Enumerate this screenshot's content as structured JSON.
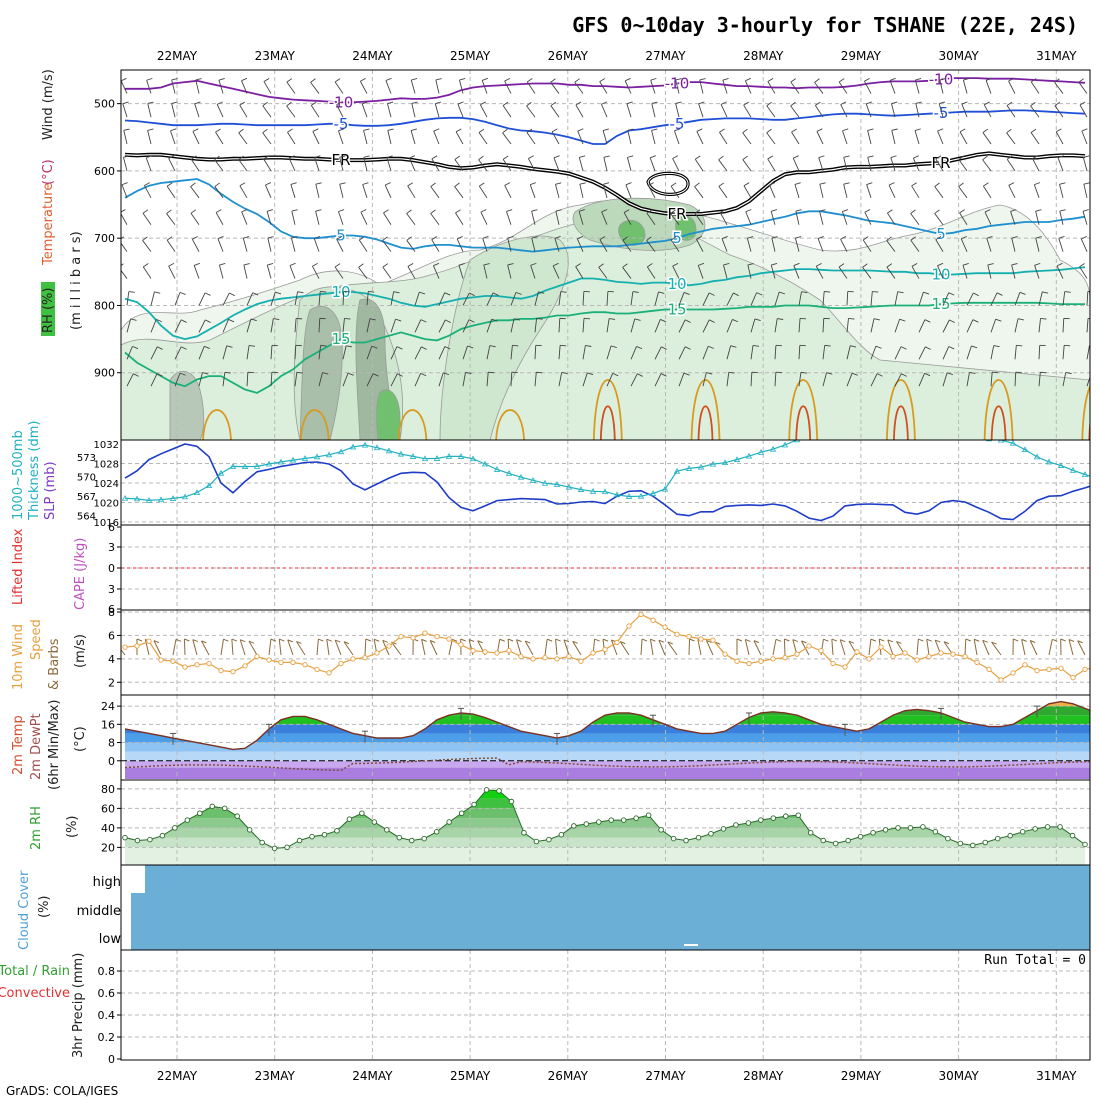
{
  "title": "GFS 0~10day 3-hourly for TSHANE (22E, 24S)",
  "footer": "GrADS: COLA/IGES",
  "dates": [
    "22MAY",
    "23MAY",
    "24MAY",
    "25MAY",
    "26MAY",
    "27MAY",
    "28MAY",
    "29MAY",
    "30MAY",
    "31MAY"
  ],
  "colors": {
    "t_minus10": "#7b1fa2",
    "t_minus5": "#1f4fd6",
    "t_freeze": "#000000",
    "t_5": "#1e90d0",
    "t_10": "#14b0b0",
    "t_15": "#1bb07a",
    "t_20": "#d89a20",
    "t_25": "#d05020",
    "rh_contour": "#aaaaaa",
    "slp": "#1e3cc8",
    "thickness": "#20b0c0",
    "wind10": "#e8a040",
    "barb": "#444444",
    "barb10": "#8a6a3a",
    "cloud": "#6baed6",
    "rh_fill": "#9dd39d",
    "lifted": "#e03030"
  },
  "chart_data": [
    {
      "panel": "upper-air",
      "type": "contour",
      "ylabels": [
        "Temperature",
        "(°C)",
        "Wind (m/s)",
        "RH (%)"
      ],
      "ylabel_axis": "(m i l l i b a r s)",
      "y_ticks": [
        500,
        600,
        700,
        800,
        900
      ],
      "ylim": [
        1000,
        450
      ],
      "temp_contours": [
        {
          "label": "-10",
          "color_key": "t_minus10",
          "p": [
            478,
            478,
            478,
            476,
            470,
            468,
            466,
            470,
            474,
            478,
            482,
            486,
            490,
            492,
            494,
            495,
            496,
            497,
            498,
            498,
            497,
            496,
            494,
            492,
            493,
            493,
            491,
            487,
            480,
            476,
            474,
            473,
            472,
            471,
            470,
            470,
            470,
            472,
            472,
            474,
            474,
            475,
            476,
            475,
            474,
            473,
            470,
            468,
            468,
            470,
            472,
            474,
            474,
            475,
            476,
            476,
            477,
            476,
            476,
            476,
            475,
            473,
            470,
            468,
            467,
            467,
            467,
            466,
            464,
            462,
            462,
            462,
            463,
            463,
            463,
            464,
            465,
            466,
            467,
            468,
            469
          ]
        },
        {
          "label": "-5",
          "color_key": "t_minus5",
          "p": [
            525,
            526,
            528,
            530,
            532,
            532,
            532,
            531,
            530,
            530,
            531,
            532,
            532,
            532,
            532,
            532,
            531,
            530,
            530,
            532,
            533,
            533,
            532,
            530,
            527,
            524,
            522,
            521,
            521,
            523,
            527,
            532,
            537,
            540,
            541,
            543,
            546,
            550,
            555,
            560,
            560,
            548,
            540,
            538,
            535,
            532,
            530,
            527,
            524,
            523,
            522,
            522,
            522,
            523,
            524,
            524,
            522,
            520,
            518,
            516,
            515,
            515,
            516,
            517,
            518,
            517,
            516,
            515,
            514,
            513,
            512,
            512,
            512,
            511,
            510,
            510,
            511,
            512,
            513,
            514,
            515
          ]
        },
        {
          "label": "FR",
          "color_key": "t_freeze",
          "p": [
            576,
            577,
            576,
            576,
            578,
            580,
            582,
            583,
            583,
            582,
            582,
            581,
            580,
            580,
            581,
            582,
            582,
            583,
            584,
            584,
            584,
            583,
            582,
            582,
            584,
            587,
            590,
            594,
            596,
            595,
            592,
            590,
            592,
            594,
            597,
            599,
            601,
            604,
            610,
            616,
            625,
            636,
            648,
            656,
            660,
            663,
            664,
            664,
            664,
            662,
            660,
            655,
            645,
            630,
            615,
            605,
            602,
            602,
            600,
            598,
            595,
            594,
            594,
            593,
            592,
            592,
            590,
            589,
            588,
            584,
            580,
            576,
            574,
            576,
            578,
            580,
            580,
            578,
            577,
            577,
            578
          ]
        },
        {
          "label": "5",
          "color_key": "t_5",
          "p": [
            640,
            630,
            622,
            618,
            616,
            614,
            612,
            620,
            634,
            646,
            656,
            664,
            676,
            690,
            698,
            700,
            700,
            698,
            696,
            696,
            698,
            702,
            708,
            714,
            716,
            712,
            710,
            710,
            712,
            714,
            714,
            714,
            716,
            718,
            720,
            718,
            716,
            714,
            713,
            712,
            712,
            712,
            710,
            708,
            706,
            704,
            700,
            694,
            690,
            686,
            684,
            682,
            680,
            676,
            672,
            668,
            663,
            660,
            660,
            663,
            666,
            670,
            674,
            676,
            678,
            682,
            686,
            690,
            694,
            692,
            688,
            686,
            682,
            680,
            678,
            676,
            676,
            676,
            673,
            671,
            668
          ]
        },
        {
          "label": "10",
          "color_key": "t_10",
          "p": [
            790,
            795,
            810,
            830,
            845,
            850,
            846,
            836,
            826,
            815,
            806,
            798,
            793,
            790,
            788,
            786,
            784,
            782,
            780,
            780,
            782,
            786,
            790,
            796,
            800,
            802,
            798,
            794,
            790,
            788,
            786,
            786,
            788,
            790,
            786,
            778,
            772,
            766,
            760,
            760,
            762,
            765,
            766,
            768,
            766,
            766,
            768,
            770,
            768,
            764,
            762,
            758,
            756,
            752,
            750,
            748,
            746,
            746,
            747,
            748,
            748,
            748,
            748,
            749,
            750,
            750,
            752,
            752,
            754,
            754,
            753,
            752,
            752,
            752,
            752,
            750,
            749,
            748,
            747,
            745,
            743
          ]
        },
        {
          "label": "15",
          "color_key": "t_15",
          "p": [
            870,
            885,
            895,
            905,
            915,
            920,
            910,
            905,
            905,
            915,
            925,
            930,
            920,
            905,
            895,
            880,
            870,
            860,
            850,
            855,
            855,
            850,
            845,
            840,
            845,
            850,
            852,
            845,
            835,
            830,
            826,
            822,
            822,
            820,
            820,
            818,
            815,
            815,
            812,
            810,
            810,
            812,
            812,
            810,
            808,
            806,
            806,
            806,
            806,
            806,
            805,
            804,
            802,
            802,
            802,
            800,
            800,
            800,
            802,
            804,
            804,
            803,
            802,
            801,
            800,
            800,
            800,
            800,
            798,
            797,
            796,
            796,
            796,
            796,
            796,
            796,
            796,
            797,
            798,
            798,
            798
          ]
        }
      ],
      "rh_levels": [
        30,
        50,
        70,
        90
      ]
    },
    {
      "panel": "slp-thickness",
      "type": "line",
      "ylabels": [
        "1000~500mb",
        "Thickness (dm)",
        "SLP (mb)"
      ],
      "left_ticks": [
        "573",
        "570",
        "567",
        "564"
      ],
      "right_ticks": [
        "1032",
        "1028",
        "1024",
        "1020",
        "1016"
      ],
      "slp_ylim": [
        1016,
        1032
      ],
      "thick_ylim": [
        563,
        575
      ],
      "slp": [
        1025.0,
        1026.5,
        1028.8,
        1030.0,
        1031.0,
        1032.0,
        1031.5,
        1029.4,
        1024.0,
        1022.0,
        1024.3,
        1026.3,
        1026.8,
        1027.4,
        1027.8,
        1028.2,
        1028.3,
        1027.9,
        1026.5,
        1023.8,
        1022.6,
        1023.8,
        1025.0,
        1026.0,
        1026.2,
        1026.1,
        1024.2,
        1021.0,
        1019.0,
        1018.3,
        1019.3,
        1020.4,
        1020.6,
        1020.8,
        1020.7,
        1020.6,
        1019.7,
        1019.8,
        1020.1,
        1020.2,
        1019.8,
        1021.3,
        1022.3,
        1022.4,
        1021.3,
        1019.5,
        1017.6,
        1017.3,
        1018.1,
        1018.1,
        1019.2,
        1019.4,
        1019.5,
        1019.4,
        1019.7,
        1019.3,
        1018.2,
        1016.8,
        1016.3,
        1017.2,
        1019.3,
        1019.6,
        1019.7,
        1019.6,
        1019.5,
        1018.0,
        1017.6,
        1018.3,
        1020.0,
        1020.4,
        1020.1,
        1019.0,
        1018.0,
        1016.7,
        1016.5,
        1018.2,
        1020.4,
        1021.3,
        1021.4,
        1022.3,
        1023.0,
        1023.8,
        1024.8,
        1025.0
      ]
    },
    {
      "panel": "stability",
      "type": "line",
      "ylabels": [
        "Lifted Index",
        "CAPE (J/kg)"
      ],
      "y_ticks": [
        "6",
        "3",
        "0",
        "3",
        "6"
      ],
      "lifted_index_ylim": [
        -6,
        6
      ],
      "lifted_index": [],
      "cape": []
    },
    {
      "panel": "wind10m",
      "type": "line",
      "ylabels": [
        "10m Wind",
        "Speed",
        "& Barbs",
        "(m/s)"
      ],
      "y_ticks": [
        "8",
        "6",
        "4",
        "2"
      ],
      "ylim": [
        1,
        8
      ],
      "speed": [
        5.0,
        5.1,
        5.5,
        3.9,
        3.8,
        3.3,
        3.5,
        3.6,
        3.0,
        2.9,
        3.4,
        4.2,
        3.9,
        3.7,
        3.7,
        3.5,
        3.1,
        2.8,
        3.6,
        4.0,
        4.1,
        4.5,
        5.1,
        5.9,
        5.8,
        6.2,
        5.9,
        5.7,
        5.2,
        4.7,
        4.6,
        4.5,
        4.7,
        4.2,
        4.0,
        4.1,
        4.0,
        4.2,
        3.8,
        4.5,
        4.8,
        5.4,
        6.8,
        7.8,
        7.3,
        6.7,
        6.1,
        5.9,
        5.7,
        5.6,
        4.4,
        3.8,
        3.6,
        3.8,
        4.0,
        4.1,
        4.4,
        5.1,
        4.7,
        3.6,
        3.3,
        4.6,
        4.0,
        5.0,
        4.2,
        4.5,
        3.9,
        4.2,
        4.5,
        4.4,
        4.2,
        3.7,
        3.1,
        2.2,
        2.8,
        3.5,
        3.0,
        3.1,
        3.2,
        2.4,
        3.1,
        3.3,
        3.9,
        4.0,
        3.7,
        3.4,
        3.9,
        4.2,
        4.5
      ]
    },
    {
      "panel": "temp2m",
      "type": "area",
      "ylabels": [
        "2m Temp",
        "2m DewPt",
        "(6hr Min/Max)",
        "(°C)"
      ],
      "y_ticks": [
        "24",
        "16",
        "8",
        "0"
      ],
      "ylim": [
        -8,
        28
      ],
      "temp": [
        14,
        13,
        12,
        11,
        10,
        9,
        8,
        7,
        6,
        5,
        5.5,
        9,
        14,
        18,
        19.5,
        19.5,
        18,
        16,
        14,
        12,
        11,
        10,
        10,
        10,
        11,
        14,
        18,
        20,
        21,
        20.5,
        19,
        17,
        15,
        13,
        12,
        11,
        10,
        11,
        13,
        17,
        20,
        21,
        21,
        20,
        18,
        16,
        14,
        13,
        12,
        12,
        13,
        16,
        19,
        21,
        21.5,
        21,
        20,
        18,
        16,
        15,
        14,
        13,
        14,
        17,
        20,
        22,
        22.5,
        22,
        21,
        19,
        17,
        16,
        15,
        15,
        16,
        19,
        22,
        25,
        26,
        25,
        23,
        21,
        19,
        18
      ]
    },
    {
      "panel": "rh2m",
      "type": "area",
      "ylabels": [
        "2m RH",
        "(%)"
      ],
      "y_ticks": [
        "80",
        "60",
        "40",
        "20"
      ],
      "ylim": [
        5,
        85
      ],
      "rh": [
        30,
        27,
        28,
        32,
        40,
        48,
        55,
        62,
        60,
        52,
        38,
        25,
        19,
        20,
        27,
        31,
        33,
        37,
        49,
        55,
        46,
        38,
        30,
        27,
        29,
        36,
        46,
        55,
        64,
        79,
        78,
        67,
        35,
        26,
        28,
        33,
        42,
        44,
        46,
        48,
        48,
        50,
        53,
        38,
        29,
        27,
        30,
        34,
        39,
        43,
        45,
        48,
        50,
        52,
        53,
        35,
        27,
        24,
        27,
        31,
        35,
        38,
        40,
        40,
        41,
        36,
        29,
        24,
        22,
        25,
        29,
        32,
        36,
        39,
        41,
        41,
        32,
        23
      ]
    },
    {
      "panel": "cloud",
      "type": "area",
      "ylabels": [
        "Cloud Cover",
        "(%)"
      ],
      "levels": [
        "high",
        "middle",
        "low"
      ]
    },
    {
      "panel": "precip",
      "type": "bar",
      "ylabels": [
        "3hr Precip (mm)",
        "Total / Rain",
        "Convective"
      ],
      "y_ticks": [
        "0.8",
        "0.6",
        "0.4",
        "0.2",
        "0"
      ],
      "ylim": [
        0,
        1
      ],
      "run_total": "Run Total = 0",
      "values": []
    }
  ]
}
